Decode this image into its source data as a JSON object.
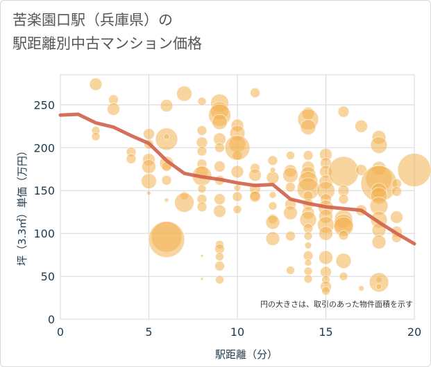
{
  "title_line1": "苦楽園口駅（兵庫県）の",
  "title_line2": "駅距離別中古マンション価格",
  "chart_data": {
    "type": "scatter",
    "xlabel": "駅距離（分）",
    "ylabel": "坪（3.3㎡）単価（万円）",
    "xlim": [
      0,
      20
    ],
    "ylim": [
      0,
      285
    ],
    "x_ticks": [
      0,
      5,
      10,
      15,
      20
    ],
    "y_ticks": [
      0,
      50,
      100,
      150,
      200,
      250
    ],
    "grid": true,
    "annotation": "円の大きさは、取引のあった物件面積を示す",
    "colors": {
      "bubble": "#f2b150",
      "trend": "#d0614b",
      "grid": "#cfd8de"
    },
    "bubbles": [
      [
        2,
        274,
        9
      ],
      [
        2,
        220,
        6
      ],
      [
        2,
        213,
        6
      ],
      [
        3,
        256,
        7
      ],
      [
        3,
        245,
        9
      ],
      [
        4,
        195,
        7
      ],
      [
        4,
        187,
        7
      ],
      [
        5,
        216,
        8
      ],
      [
        5,
        204,
        7
      ],
      [
        5,
        186,
        9
      ],
      [
        5,
        178,
        10
      ],
      [
        5,
        161,
        11
      ],
      [
        5,
        147,
        3
      ],
      [
        6,
        249,
        9
      ],
      [
        6,
        210,
        16
      ],
      [
        6,
        213,
        4
      ],
      [
        6,
        182,
        10
      ],
      [
        6,
        178,
        7
      ],
      [
        6,
        162,
        7
      ],
      [
        6,
        139,
        3
      ],
      [
        6,
        96,
        22
      ],
      [
        6,
        93,
        26
      ],
      [
        7,
        263,
        11
      ],
      [
        7,
        144,
        6
      ],
      [
        7,
        136,
        14
      ],
      [
        8,
        254,
        6
      ],
      [
        8,
        220,
        7
      ],
      [
        8,
        206,
        8
      ],
      [
        8,
        196,
        7
      ],
      [
        8,
        181,
        7
      ],
      [
        8,
        172,
        9
      ],
      [
        8,
        167,
        14
      ],
      [
        8,
        152,
        6
      ],
      [
        8,
        140,
        7
      ],
      [
        8,
        131,
        7
      ],
      [
        8,
        74,
        2
      ],
      [
        8,
        47,
        2
      ],
      [
        9,
        252,
        13
      ],
      [
        9,
        243,
        13
      ],
      [
        9,
        238,
        16
      ],
      [
        9,
        230,
        11
      ],
      [
        9,
        210,
        9
      ],
      [
        9,
        200,
        7
      ],
      [
        9,
        178,
        8
      ],
      [
        9,
        162,
        7
      ],
      [
        9,
        140,
        8
      ],
      [
        9,
        126,
        9
      ],
      [
        9,
        87,
        6
      ],
      [
        9,
        82,
        7
      ],
      [
        9,
        73,
        6
      ],
      [
        9,
        62,
        7
      ],
      [
        9,
        46,
        6
      ],
      [
        10,
        226,
        9
      ],
      [
        10,
        217,
        11
      ],
      [
        10,
        204,
        12
      ],
      [
        10,
        191,
        7
      ],
      [
        10,
        172,
        9
      ],
      [
        10,
        143,
        7
      ],
      [
        10,
        128,
        6
      ],
      [
        10,
        153,
        5
      ],
      [
        10,
        200,
        18
      ],
      [
        11,
        264,
        7
      ],
      [
        11,
        176,
        7
      ],
      [
        11,
        168,
        9
      ],
      [
        11,
        152,
        8
      ],
      [
        11,
        144,
        7
      ],
      [
        11,
        143,
        8
      ],
      [
        12,
        185,
        7
      ],
      [
        12,
        165,
        9
      ],
      [
        12,
        145,
        5
      ],
      [
        12,
        132,
        6
      ],
      [
        12,
        117,
        7
      ],
      [
        12,
        113,
        10
      ],
      [
        12,
        94,
        10
      ],
      [
        12,
        174,
        4
      ],
      [
        13,
        191,
        6
      ],
      [
        13,
        173,
        9
      ],
      [
        13,
        168,
        11
      ],
      [
        13,
        154,
        7
      ],
      [
        13,
        134,
        8
      ],
      [
        13,
        124,
        10
      ],
      [
        13,
        97,
        7
      ],
      [
        13,
        57,
        6
      ],
      [
        14,
        240,
        9
      ],
      [
        14,
        233,
        15
      ],
      [
        14,
        224,
        11
      ],
      [
        14,
        191,
        7
      ],
      [
        14,
        177,
        9
      ],
      [
        14,
        169,
        11
      ],
      [
        14,
        161,
        14
      ],
      [
        14,
        152,
        16
      ],
      [
        14,
        144,
        7
      ],
      [
        14,
        134,
        8
      ],
      [
        14,
        124,
        9
      ],
      [
        14,
        116,
        12
      ],
      [
        14,
        106,
        7
      ],
      [
        14,
        97,
        6
      ],
      [
        14,
        86,
        5
      ],
      [
        14,
        74,
        7
      ],
      [
        14,
        66,
        5
      ],
      [
        14,
        56,
        6
      ],
      [
        14,
        47,
        6
      ],
      [
        15,
        192,
        9
      ],
      [
        15,
        182,
        8
      ],
      [
        15,
        172,
        9
      ],
      [
        15,
        160,
        10
      ],
      [
        15,
        150,
        13
      ],
      [
        15,
        140,
        8
      ],
      [
        15,
        130,
        11
      ],
      [
        15,
        120,
        10
      ],
      [
        15,
        110,
        12
      ],
      [
        15,
        100,
        10
      ],
      [
        15,
        72,
        10
      ],
      [
        15,
        55,
        8
      ],
      [
        15,
        46,
        6
      ],
      [
        15,
        38,
        8
      ],
      [
        15,
        33,
        6
      ],
      [
        16,
        242,
        8
      ],
      [
        16,
        172,
        22
      ],
      [
        16,
        150,
        8
      ],
      [
        16,
        140,
        7
      ],
      [
        16,
        117,
        13
      ],
      [
        16,
        111,
        14
      ],
      [
        16,
        108,
        14
      ],
      [
        16,
        98,
        7
      ],
      [
        16,
        68,
        11
      ],
      [
        16,
        50,
        6
      ],
      [
        17,
        225,
        9
      ],
      [
        17,
        174,
        8
      ],
      [
        17,
        127,
        8
      ],
      [
        17,
        36,
        4
      ],
      [
        18,
        212,
        10
      ],
      [
        18,
        203,
        12
      ],
      [
        18,
        176,
        10
      ],
      [
        18,
        164,
        19
      ],
      [
        18,
        158,
        26
      ],
      [
        18,
        150,
        11
      ],
      [
        18,
        144,
        12
      ],
      [
        18,
        132,
        13
      ],
      [
        18,
        116,
        12
      ],
      [
        18,
        104,
        10
      ],
      [
        18,
        90,
        10
      ],
      [
        18,
        46,
        4
      ],
      [
        18,
        43,
        14
      ],
      [
        18,
        38,
        4
      ],
      [
        19,
        158,
        7
      ],
      [
        19,
        149,
        7
      ],
      [
        19,
        119,
        9
      ],
      [
        19,
        102,
        8
      ],
      [
        19,
        95,
        7
      ],
      [
        20,
        174,
        24
      ]
    ],
    "trend": {
      "x": [
        0,
        1,
        2,
        3,
        4,
        5,
        6,
        7,
        8,
        9,
        10,
        11,
        12,
        13,
        14,
        15,
        16,
        17,
        18,
        19,
        20
      ],
      "y": [
        238,
        239,
        229,
        224,
        214,
        205,
        185,
        170,
        166,
        163,
        159,
        156,
        157,
        140,
        135,
        131,
        129,
        127,
        113,
        100,
        88
      ]
    }
  }
}
